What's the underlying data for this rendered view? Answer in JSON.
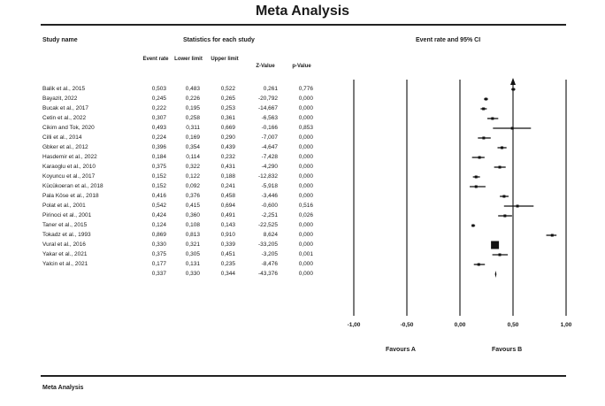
{
  "title": "Meta Analysis",
  "footer_title": "Meta Analysis",
  "headers": {
    "study_name": "Study name",
    "statistics": "Statistics for each study",
    "event_rate_ci": "Event rate and 95% CI",
    "event_rate": "Event rate",
    "lower_limit": "Lower limit",
    "upper_limit": "Upper limit",
    "z_value": "Z-Value",
    "p_value": "p-Value"
  },
  "favours": {
    "a": "Favours A",
    "b": "Favours B"
  },
  "chart_data": {
    "type": "forest",
    "title": "Meta Analysis",
    "x_ticks": [
      "-1,00",
      "-0,50",
      "0,00",
      "0,50",
      "1,00"
    ],
    "x_range": [
      -1,
      1
    ],
    "studies": [
      {
        "name": "Balik et al., 2015",
        "rate": "0,503",
        "lower": "0,483",
        "upper": "0,522",
        "z": "0,261",
        "p": "0,776",
        "r": 0.503,
        "lo": 0.483,
        "hi": 0.522
      },
      {
        "name": "Bayazit, 2022",
        "rate": "0,245",
        "lower": "0,226",
        "upper": "0,265",
        "z": "-20,792",
        "p": "0,000",
        "r": 0.245,
        "lo": 0.226,
        "hi": 0.265
      },
      {
        "name": "Bucak et al., 2017",
        "rate": "0,222",
        "lower": "0,195",
        "upper": "0,253",
        "z": "-14,667",
        "p": "0,000",
        "r": 0.222,
        "lo": 0.195,
        "hi": 0.253
      },
      {
        "name": "Cetin et al., 2022",
        "rate": "0,307",
        "lower": "0,258",
        "upper": "0,361",
        "z": "-6,563",
        "p": "0,000",
        "r": 0.307,
        "lo": 0.258,
        "hi": 0.361
      },
      {
        "name": "Cikim and Tok, 2020",
        "rate": "0,493",
        "lower": "0,311",
        "upper": "0,669",
        "z": "-0,166",
        "p": "0,853",
        "r": 0.493,
        "lo": 0.311,
        "hi": 0.669
      },
      {
        "name": "Cilli et al., 2014",
        "rate": "0,224",
        "lower": "0,169",
        "upper": "0,290",
        "z": "-7,007",
        "p": "0,000",
        "r": 0.224,
        "lo": 0.169,
        "hi": 0.29
      },
      {
        "name": "Gbker et al., 2012",
        "rate": "0,396",
        "lower": "0,354",
        "upper": "0,439",
        "z": "-4,647",
        "p": "0,000",
        "r": 0.396,
        "lo": 0.354,
        "hi": 0.439
      },
      {
        "name": "Hasdemir et al., 2022",
        "rate": "0,184",
        "lower": "0,114",
        "upper": "0,232",
        "z": "-7,428",
        "p": "0,000",
        "r": 0.184,
        "lo": 0.114,
        "hi": 0.232
      },
      {
        "name": "Karaoglu et al., 2010",
        "rate": "0,375",
        "lower": "0,322",
        "upper": "0,431",
        "z": "-4,290",
        "p": "0,000",
        "r": 0.375,
        "lo": 0.322,
        "hi": 0.431
      },
      {
        "name": "Koyuncu et al., 2017",
        "rate": "0,152",
        "lower": "0,122",
        "upper": "0,188",
        "z": "-12,832",
        "p": "0,000",
        "r": 0.152,
        "lo": 0.122,
        "hi": 0.188
      },
      {
        "name": "Kücükoeran et al., 2018",
        "rate": "0,152",
        "lower": "0,092",
        "upper": "0,241",
        "z": "-5,918",
        "p": "0,000",
        "r": 0.152,
        "lo": 0.092,
        "hi": 0.241
      },
      {
        "name": "Pala Köse et al., 2018",
        "rate": "0,416",
        "lower": "0,376",
        "upper": "0,458",
        "z": "-3,446",
        "p": "0,000",
        "r": 0.416,
        "lo": 0.376,
        "hi": 0.458
      },
      {
        "name": "Polat et al., 2001",
        "rate": "0,542",
        "lower": "0,415",
        "upper": "0,694",
        "z": "-0,600",
        "p": "0,516",
        "r": 0.542,
        "lo": 0.415,
        "hi": 0.694
      },
      {
        "name": "Pirinoci et al., 2001",
        "rate": "0,424",
        "lower": "0,360",
        "upper": "0,491",
        "z": "-2,251",
        "p": "0,026",
        "r": 0.424,
        "lo": 0.36,
        "hi": 0.491
      },
      {
        "name": "Taner et al., 2015",
        "rate": "0,124",
        "lower": "0,108",
        "upper": "0,143",
        "z": "-22,525",
        "p": "0,000",
        "r": 0.124,
        "lo": 0.108,
        "hi": 0.143
      },
      {
        "name": "Tokadz et al., 1993",
        "rate": "0,869",
        "lower": "0,813",
        "upper": "0,910",
        "z": "8,624",
        "p": "0,000",
        "r": 0.869,
        "lo": 0.813,
        "hi": 0.91
      },
      {
        "name": "Vural et al., 2016",
        "rate": "0,330",
        "lower": "0,321",
        "upper": "0,339",
        "z": "-33,205",
        "p": "0,000",
        "r": 0.33,
        "lo": 0.321,
        "hi": 0.339
      },
      {
        "name": "Yakar et al., 2021",
        "rate": "0,375",
        "lower": "0,305",
        "upper": "0,451",
        "z": "-3,205",
        "p": "0,001",
        "r": 0.375,
        "lo": 0.305,
        "hi": 0.451
      },
      {
        "name": "Yalcin et al., 2021",
        "rate": "0,177",
        "lower": "0,131",
        "upper": "0,235",
        "z": "-8,476",
        "p": "0,000",
        "r": 0.177,
        "lo": 0.131,
        "hi": 0.235
      }
    ],
    "summary": {
      "rate": "0,337",
      "lower": "0,330",
      "upper": "0,344",
      "z": "-43,376",
      "p": "0,000",
      "r": 0.337,
      "lo": 0.33,
      "hi": 0.344
    }
  }
}
